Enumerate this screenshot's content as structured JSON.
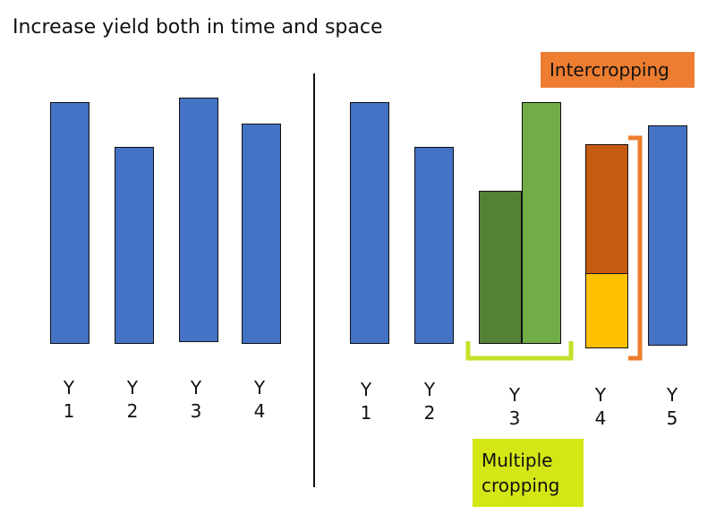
{
  "title": "Increase yield both in time and space",
  "colors": {
    "bar_blue": "#4472c4",
    "dark_green": "#538135",
    "light_green": "#70ad47",
    "rust": "#c55a11",
    "gold": "#ffc000",
    "intercropping_bg": "#ed7d31",
    "multiple_cropping_bg": "#d4e616",
    "multiple_cropping_bracket": "#c6e02a",
    "intercropping_bracket": "#ed7d31"
  },
  "left_group": {
    "labels": [
      {
        "line1": "Y",
        "line2": "1"
      },
      {
        "line1": "Y",
        "line2": "2"
      },
      {
        "line1": "Y",
        "line2": "3"
      },
      {
        "line1": "Y",
        "line2": "4"
      }
    ]
  },
  "right_group": {
    "labels": [
      {
        "line1": "Y",
        "line2": "1"
      },
      {
        "line1": "Y",
        "line2": "2"
      },
      {
        "line1": "Y",
        "line2": "3"
      },
      {
        "line1": "Y",
        "line2": "4"
      },
      {
        "line1": "Y",
        "line2": "5"
      }
    ]
  },
  "callouts": {
    "intercropping": "Intercropping",
    "multiple_cropping_line1": "Multiple",
    "multiple_cropping_line2": "cropping"
  }
}
